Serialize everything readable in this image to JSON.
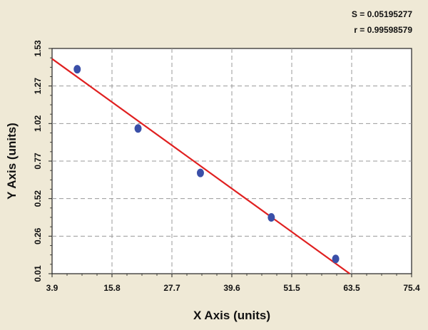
{
  "chart_data": {
    "type": "scatter",
    "title": "",
    "xlabel": "X Axis (units)",
    "ylabel": "Y Axis (units)",
    "xlim": [
      3.9,
      75.4
    ],
    "ylim": [
      0.01,
      1.53
    ],
    "x_ticks": [
      "3.9",
      "15.8",
      "27.7",
      "39.6",
      "51.5",
      "63.5",
      "75.4"
    ],
    "y_ticks": [
      "0.01",
      "0.26",
      "0.52",
      "0.77",
      "1.02",
      "1.27",
      "1.53"
    ],
    "grid": true,
    "stats": {
      "s": "S = 0.05195277",
      "r": "r = 0.99598579"
    },
    "series": [
      {
        "kind": "points",
        "color": "#3a4fa8",
        "x": [
          8.9,
          21.0,
          33.4,
          47.5,
          60.3
        ],
        "y": [
          1.39,
          0.99,
          0.69,
          0.39,
          0.11
        ]
      },
      {
        "kind": "fit-line",
        "color": "#e02020",
        "x": [
          3.9,
          63.1
        ],
        "y": [
          1.46,
          0.01
        ]
      }
    ]
  }
}
